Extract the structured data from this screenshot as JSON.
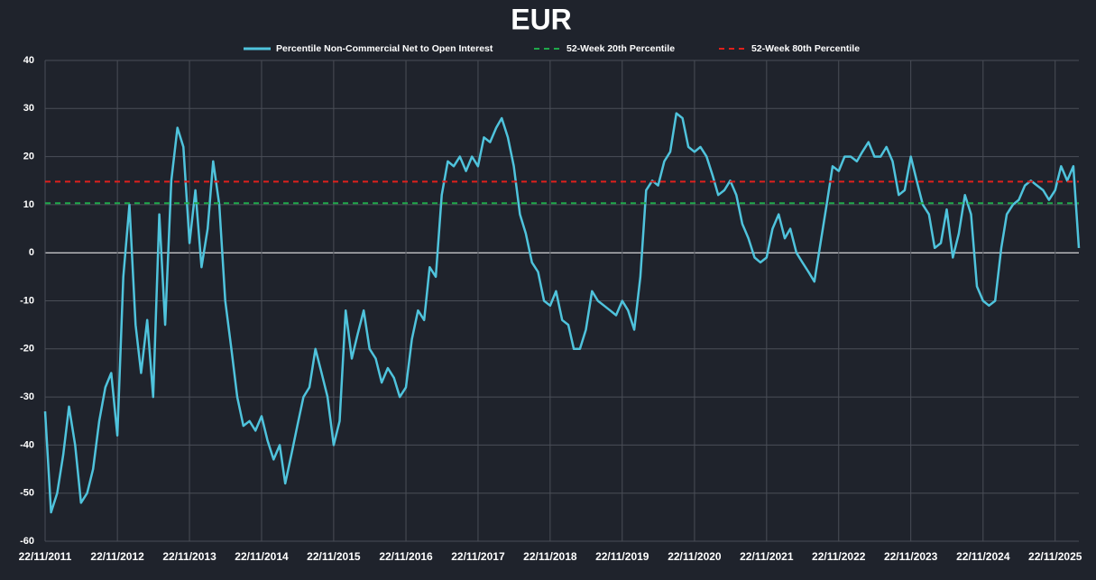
{
  "chart_data": {
    "type": "line",
    "title": "EUR",
    "x": [
      "22/11/2011",
      "22/12/2011",
      "22/01/2012",
      "22/02/2012",
      "22/03/2012",
      "22/04/2012",
      "22/05/2012",
      "22/06/2012",
      "22/07/2012",
      "22/08/2012",
      "22/09/2012",
      "22/10/2012",
      "22/11/2012",
      "22/12/2012",
      "22/01/2013",
      "22/02/2013",
      "22/03/2013",
      "22/04/2013",
      "22/05/2013",
      "22/06/2013",
      "22/07/2013",
      "22/08/2013",
      "22/09/2013",
      "22/10/2013",
      "22/11/2013",
      "22/12/2013",
      "22/01/2014",
      "22/02/2014",
      "22/03/2014",
      "22/04/2014",
      "22/05/2014",
      "22/06/2014",
      "22/07/2014",
      "22/08/2014",
      "22/09/2014",
      "22/10/2014",
      "22/11/2014",
      "22/12/2014",
      "22/01/2015",
      "22/02/2015",
      "22/03/2015",
      "22/04/2015",
      "22/05/2015",
      "22/06/2015",
      "22/07/2015",
      "22/08/2015",
      "22/09/2015",
      "22/10/2015",
      "22/11/2015",
      "22/12/2015",
      "22/01/2016",
      "22/02/2016",
      "22/03/2016",
      "22/04/2016",
      "22/05/2016",
      "22/06/2016",
      "22/07/2016",
      "22/08/2016",
      "22/09/2016",
      "22/10/2016",
      "22/11/2016",
      "22/12/2016",
      "22/01/2017",
      "22/02/2017",
      "22/03/2017",
      "22/04/2017",
      "22/05/2017",
      "22/06/2017",
      "22/07/2017",
      "22/08/2017",
      "22/09/2017",
      "22/10/2017",
      "22/11/2017",
      "22/12/2017",
      "22/01/2018",
      "22/02/2018",
      "22/03/2018",
      "22/04/2018",
      "22/05/2018",
      "22/06/2018",
      "22/07/2018",
      "22/08/2018",
      "22/09/2018",
      "22/10/2018",
      "22/11/2018",
      "22/12/2018",
      "22/01/2019",
      "22/02/2019",
      "22/03/2019",
      "22/04/2019",
      "22/05/2019",
      "22/06/2019",
      "22/07/2019",
      "22/08/2019",
      "22/09/2019",
      "22/10/2019",
      "22/11/2019",
      "22/12/2019",
      "22/01/2020",
      "22/02/2020",
      "22/03/2020",
      "22/04/2020",
      "22/05/2020",
      "22/06/2020",
      "22/07/2020",
      "22/08/2020",
      "22/09/2020",
      "22/10/2020",
      "22/11/2020",
      "22/12/2020",
      "22/01/2021",
      "22/02/2021",
      "22/03/2021",
      "22/04/2021",
      "22/05/2021",
      "22/06/2021",
      "22/07/2021",
      "22/08/2021",
      "22/09/2021",
      "22/10/2021",
      "22/11/2021",
      "22/12/2021",
      "22/01/2022",
      "22/02/2022",
      "22/03/2022",
      "22/04/2022",
      "22/05/2022",
      "22/06/2022",
      "22/07/2022",
      "22/08/2022",
      "22/09/2022",
      "22/10/2022",
      "22/11/2022",
      "22/12/2022",
      "22/01/2023",
      "22/02/2023",
      "22/03/2023",
      "22/04/2023",
      "22/05/2023",
      "22/06/2023",
      "22/07/2023",
      "22/08/2023",
      "22/09/2023",
      "22/10/2023",
      "22/11/2023",
      "22/12/2023",
      "22/01/2024",
      "22/02/2024",
      "22/03/2024",
      "22/04/2024",
      "22/05/2024",
      "22/06/2024",
      "22/07/2024",
      "22/08/2024",
      "22/09/2024",
      "22/10/2024",
      "22/11/2024",
      "22/12/2024",
      "22/01/2025",
      "22/02/2025",
      "22/03/2025",
      "22/04/2025",
      "22/05/2025",
      "22/06/2025",
      "22/07/2025",
      "22/08/2025",
      "22/09/2025",
      "22/10/2025",
      "22/11/2025",
      "22/12/2025",
      "22/01/2026",
      "22/02/2026",
      "22/03/2026"
    ],
    "series": [
      {
        "name": "Percentile Non-Commercial Net to Open Interest",
        "color": "#4fc3dc",
        "dash": false,
        "values": [
          -33,
          -54,
          -50,
          -42,
          -32,
          -40,
          -52,
          -50,
          -45,
          -35,
          -28,
          -25,
          -38,
          -5,
          10,
          -15,
          -25,
          -14,
          -30,
          8,
          -15,
          15,
          26,
          22,
          2,
          13,
          -3,
          5,
          19,
          10,
          -10,
          -20,
          -30,
          -36,
          -35,
          -37,
          -34,
          -39,
          -43,
          -40,
          -48,
          -42,
          -36,
          -30,
          -28,
          -20,
          -25,
          -30,
          -40,
          -35,
          -12,
          -22,
          -17,
          -12,
          -20,
          -22,
          -27,
          -24,
          -26,
          -30,
          -28,
          -18,
          -12,
          -14,
          -3,
          -5,
          12,
          19,
          18,
          20,
          17,
          20,
          18,
          24,
          23,
          26,
          28,
          24,
          18,
          8,
          4,
          -2,
          -4,
          -10,
          -11,
          -8,
          -14,
          -15,
          -20,
          -20,
          -16,
          -8,
          -10,
          -11,
          -12,
          -13,
          -10,
          -12,
          -16,
          -5,
          13,
          15,
          14,
          19,
          21,
          29,
          28,
          22,
          21,
          22,
          20,
          16,
          12,
          13,
          15,
          12,
          6,
          3,
          -1,
          -2,
          -1,
          5,
          8,
          3,
          5,
          0,
          -2,
          -4,
          -6,
          2,
          10,
          18,
          17,
          20,
          20,
          19,
          21,
          23,
          20,
          20,
          22,
          19,
          12,
          13,
          20,
          15,
          10,
          8,
          1,
          2,
          9,
          -1,
          4,
          12,
          8,
          -7,
          -10,
          -11,
          -10,
          1,
          8,
          10,
          11,
          14,
          15,
          14,
          13,
          11,
          13,
          18,
          15,
          18,
          1
        ]
      },
      {
        "name": "52-Week 20th Percentile",
        "color": "#1fa84a",
        "dash": true,
        "value": 10.3
      },
      {
        "name": "52-Week 80th Percentile",
        "color": "#e0201c",
        "dash": true,
        "value": 14.8
      }
    ],
    "xlim": [
      "22/11/2011",
      "22/03/2026"
    ],
    "xticks": [
      "22/11/2011",
      "22/11/2012",
      "22/11/2013",
      "22/11/2014",
      "22/11/2015",
      "22/11/2016",
      "22/11/2017",
      "22/11/2018",
      "22/11/2019",
      "22/11/2020",
      "22/11/2021",
      "22/11/2022",
      "22/11/2023",
      "22/11/2024",
      "22/11/2025"
    ],
    "ylim": [
      -60,
      40
    ],
    "yticks": [
      -60,
      -50,
      -40,
      -30,
      -20,
      -10,
      0,
      10,
      20,
      30,
      40
    ],
    "grid": true
  }
}
